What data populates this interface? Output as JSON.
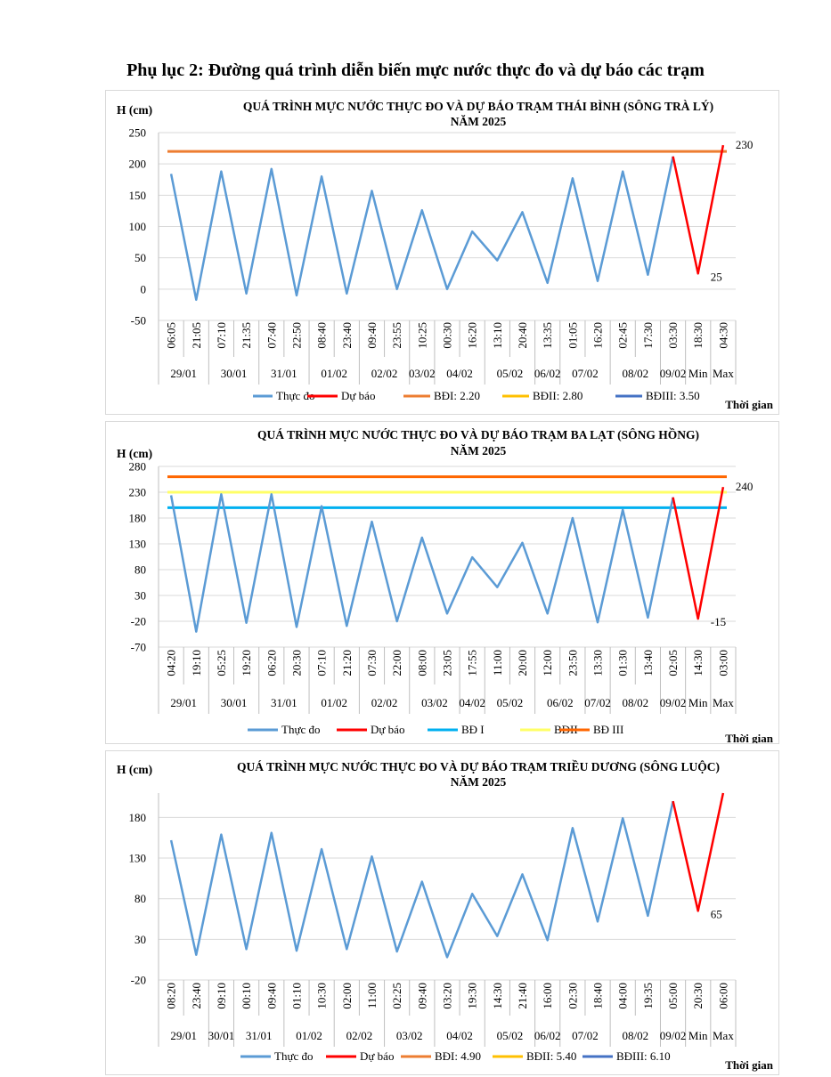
{
  "page_title": "Phụ lục 2: Đường quá trình diễn biến mực nước thực đo và dự báo các trạm",
  "chart_data": [
    {
      "type": "line",
      "title_line1": "QUÁ TRÌNH MỰC NƯỚC THỰC ĐO VÀ DỰ BÁO TRẠM THÁI BÌNH (SÔNG TRÀ LÝ)",
      "title_line2": "NĂM 2025",
      "ylabel": "H (cm)",
      "xlabel": "Thời gian",
      "ylim": [
        -50,
        250
      ],
      "yticks": [
        -50,
        0,
        50,
        100,
        150,
        200,
        250
      ],
      "categories": [
        "06:05",
        "21:05",
        "07:10",
        "21:35",
        "07:40",
        "22:50",
        "08:40",
        "23:40",
        "09:40",
        "23:55",
        "10:25",
        "00:30",
        "16:20",
        "13:10",
        "20:40",
        "13:35",
        "01:05",
        "16:20",
        "02:45",
        "17:30",
        "03:30",
        "18:30",
        "04:30"
      ],
      "date_groups": [
        {
          "label": "29/01",
          "from": 0,
          "to": 1
        },
        {
          "label": "30/01",
          "from": 2,
          "to": 3
        },
        {
          "label": "31/01",
          "from": 4,
          "to": 5
        },
        {
          "label": "01/02",
          "from": 6,
          "to": 7
        },
        {
          "label": "02/02",
          "from": 8,
          "to": 9
        },
        {
          "label": "03/02",
          "from": 10,
          "to": 10
        },
        {
          "label": "04/02",
          "from": 11,
          "to": 12
        },
        {
          "label": "05/02",
          "from": 13,
          "to": 14
        },
        {
          "label": "06/02",
          "from": 15,
          "to": 15
        },
        {
          "label": "07/02",
          "from": 16,
          "to": 17
        },
        {
          "label": "08/02",
          "from": 18,
          "to": 19
        },
        {
          "label": "09/02",
          "from": 20,
          "to": 20
        },
        {
          "label": "Min",
          "from": 21,
          "to": 21
        },
        {
          "label": "Max",
          "from": 22,
          "to": 22
        }
      ],
      "series": [
        {
          "name": "Thực đo",
          "color": "#5b9bd5",
          "values": [
            184,
            -17,
            188,
            -7,
            192,
            -10,
            180,
            -7,
            157,
            0,
            126,
            0,
            92,
            46,
            123,
            10,
            177,
            13,
            188,
            23,
            212,
            null,
            null
          ]
        },
        {
          "name": "Dự báo",
          "color": "#ff0000",
          "values": [
            null,
            null,
            null,
            null,
            null,
            null,
            null,
            null,
            null,
            null,
            null,
            null,
            null,
            null,
            null,
            null,
            null,
            null,
            null,
            null,
            212,
            25,
            230
          ]
        }
      ],
      "thresholds": [
        {
          "name": "BĐI: 2.20",
          "color": "#ed7d31",
          "value": 220,
          "drawn": true
        },
        {
          "name": "BĐII: 2.80",
          "color": "#ffc000",
          "value": 280,
          "drawn": false
        },
        {
          "name": "BĐIII: 3.50",
          "color": "#4472c4",
          "value": 350,
          "drawn": false
        }
      ],
      "annotations": [
        {
          "text": "25",
          "index": 21,
          "value": 25
        },
        {
          "text": "230",
          "index": 22,
          "value": 230
        }
      ]
    },
    {
      "type": "line",
      "title_line1": "QUÁ TRÌNH MỰC NƯỚC THỰC ĐO VÀ DỰ BÁO TRẠM BA LẠT (SÔNG HỒNG)",
      "title_line2": "NĂM 2025",
      "ylabel": "H (cm)",
      "xlabel": "Thời gian",
      "ylim": [
        -70,
        280
      ],
      "yticks": [
        -70,
        -20,
        30,
        80,
        130,
        180,
        230,
        280
      ],
      "categories": [
        "04:20",
        "19:10",
        "05:25",
        "19:20",
        "06:20",
        "20:30",
        "07:10",
        "21:20",
        "07:30",
        "22:00",
        "08:00",
        "23:05",
        "17:55",
        "11:00",
        "20:00",
        "12:00",
        "23:50",
        "13:30",
        "01:30",
        "13:40",
        "02:05",
        "14:30",
        "03:00"
      ],
      "date_groups": [
        {
          "label": "29/01",
          "from": 0,
          "to": 1
        },
        {
          "label": "30/01",
          "from": 2,
          "to": 3
        },
        {
          "label": "31/01",
          "from": 4,
          "to": 5
        },
        {
          "label": "01/02",
          "from": 6,
          "to": 7
        },
        {
          "label": "02/02",
          "from": 8,
          "to": 9
        },
        {
          "label": "03/02",
          "from": 10,
          "to": 11
        },
        {
          "label": "04/02",
          "from": 12,
          "to": 12
        },
        {
          "label": "05/02",
          "from": 13,
          "to": 14
        },
        {
          "label": "06/02",
          "from": 15,
          "to": 16
        },
        {
          "label": "07/02",
          "from": 17,
          "to": 17
        },
        {
          "label": "08/02",
          "from": 18,
          "to": 19
        },
        {
          "label": "09/02",
          "from": 20,
          "to": 20
        },
        {
          "label": "Min",
          "from": 21,
          "to": 21
        },
        {
          "label": "Max",
          "from": 22,
          "to": 22
        }
      ],
      "series": [
        {
          "name": "Thực đo",
          "color": "#5b9bd5",
          "values": [
            224,
            -40,
            226,
            -23,
            226,
            -31,
            203,
            -29,
            173,
            -20,
            142,
            -5,
            104,
            46,
            132,
            -5,
            180,
            -22,
            196,
            -13,
            220,
            null,
            null
          ]
        },
        {
          "name": "Dự báo",
          "color": "#ff0000",
          "values": [
            null,
            null,
            null,
            null,
            null,
            null,
            null,
            null,
            null,
            null,
            null,
            null,
            null,
            null,
            null,
            null,
            null,
            null,
            null,
            null,
            220,
            -15,
            240
          ]
        }
      ],
      "thresholds": [
        {
          "name": "BĐ I",
          "color": "#00b0f0",
          "value": 200,
          "drawn": true
        },
        {
          "name": "BĐII",
          "color": "#ffff66",
          "value": 230,
          "drawn": true
        },
        {
          "name": "BĐ III",
          "color": "#ff6600",
          "value": 260,
          "drawn": true
        }
      ],
      "annotations": [
        {
          "text": "-15",
          "index": 21,
          "value": -15
        },
        {
          "text": "240",
          "index": 22,
          "value": 240
        }
      ]
    },
    {
      "type": "line",
      "title_line1": "QUÁ TRÌNH MỰC NƯỚC THỰC ĐO VÀ DỰ BÁO TRẠM TRIỀU DƯƠNG (SÔNG LUỘC)",
      "title_line2": "NĂM 2025",
      "ylabel": "H (cm)",
      "xlabel": "Thời gian",
      "ylim": [
        -20,
        210
      ],
      "yticks": [
        -20,
        30,
        80,
        130,
        180
      ],
      "categories": [
        "08:20",
        "23:40",
        "09:10",
        "00:10",
        "09:40",
        "01:10",
        "10:30",
        "02:00",
        "11:00",
        "02:25",
        "09:40",
        "03:20",
        "19:30",
        "14:30",
        "21:40",
        "16:00",
        "02:30",
        "18:40",
        "04:00",
        "19:35",
        "05:00",
        "20:30",
        "06:00"
      ],
      "date_groups": [
        {
          "label": "29/01",
          "from": 0,
          "to": 1
        },
        {
          "label": "30/01",
          "from": 2,
          "to": 2
        },
        {
          "label": "31/01",
          "from": 3,
          "to": 4
        },
        {
          "label": "01/02",
          "from": 5,
          "to": 6
        },
        {
          "label": "02/02",
          "from": 7,
          "to": 8
        },
        {
          "label": "03/02",
          "from": 9,
          "to": 10
        },
        {
          "label": "04/02",
          "from": 11,
          "to": 12
        },
        {
          "label": "05/02",
          "from": 13,
          "to": 14
        },
        {
          "label": "06/02",
          "from": 15,
          "to": 15
        },
        {
          "label": "07/02",
          "from": 16,
          "to": 17
        },
        {
          "label": "08/02",
          "from": 18,
          "to": 19
        },
        {
          "label": "09/02",
          "from": 20,
          "to": 20
        },
        {
          "label": "Min",
          "from": 21,
          "to": 21
        },
        {
          "label": "Max",
          "from": 22,
          "to": 22
        }
      ],
      "series": [
        {
          "name": "Thực đo",
          "color": "#5b9bd5",
          "values": [
            152,
            11,
            159,
            18,
            161,
            16,
            141,
            18,
            132,
            15,
            101,
            8,
            86,
            34,
            110,
            29,
            167,
            52,
            179,
            59,
            200,
            null,
            null
          ]
        },
        {
          "name": "Dự báo",
          "color": "#ff0000",
          "values": [
            null,
            null,
            null,
            null,
            null,
            null,
            null,
            null,
            null,
            null,
            null,
            null,
            null,
            null,
            null,
            null,
            null,
            null,
            null,
            null,
            200,
            65,
            210
          ]
        }
      ],
      "thresholds": [
        {
          "name": "BĐI: 4.90",
          "color": "#ed7d31",
          "value": 490,
          "drawn": false
        },
        {
          "name": "BĐII: 5.40",
          "color": "#ffc000",
          "value": 540,
          "drawn": false
        },
        {
          "name": "BĐIII: 6.10",
          "color": "#4472c4",
          "value": 610,
          "drawn": false
        }
      ],
      "annotations": [
        {
          "text": "65",
          "index": 21,
          "value": 65
        }
      ]
    }
  ]
}
